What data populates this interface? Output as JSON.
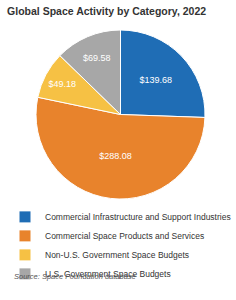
{
  "chart_data": {
    "type": "pie",
    "title": "Global Space Activity by Category, 2022",
    "categories": [
      "Commercial Infrastructure and Support Industries",
      "Commercial Space Products and Services",
      "Non-U.S. Government Space Budgets",
      "U.S. Government Space Budgets"
    ],
    "values": [
      139.68,
      288.08,
      49.18,
      69.58
    ],
    "value_labels": [
      "$139.68",
      "$288.08",
      "$49.18",
      "$69.58"
    ],
    "colors": [
      "#1f6db5",
      "#e8832c",
      "#f6c144",
      "#a7a7a7"
    ],
    "data_labels": true,
    "legend": "bottom",
    "annotations": [
      "Source: Space Foundation database"
    ]
  }
}
